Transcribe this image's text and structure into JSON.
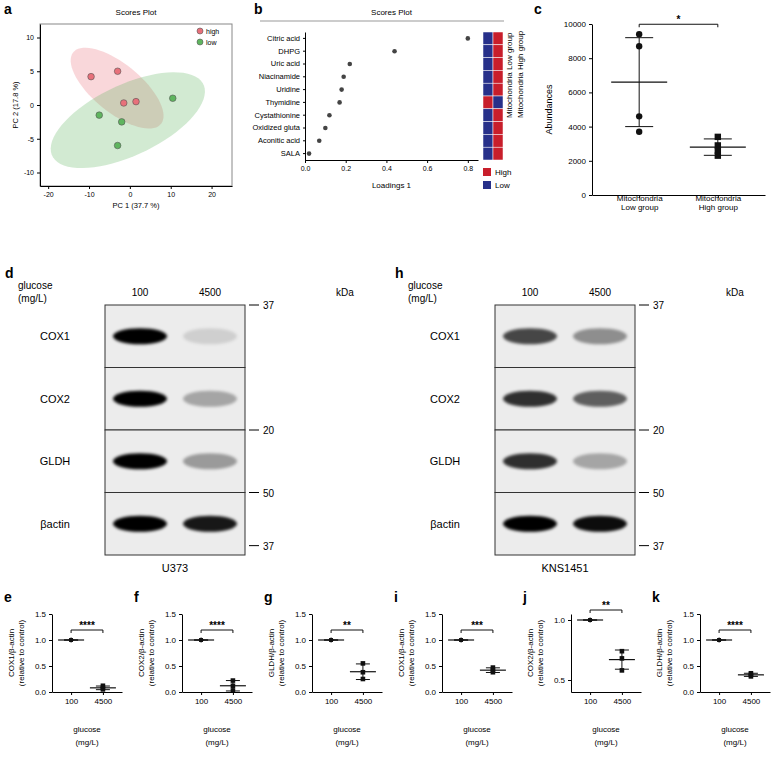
{
  "chart_data": [
    {
      "panel": "a",
      "type": "scatter",
      "title": "Scores Plot",
      "x_label": "PC 1 (37.7 %)",
      "y_label": "PC 2 (17.8 %)",
      "xlim": [
        -22,
        25
      ],
      "ylim": [
        -12,
        12
      ],
      "xticks": [
        -20,
        -10,
        0,
        10,
        20
      ],
      "yticks": [
        -10,
        -5,
        0,
        5,
        10
      ],
      "legend": "top-right",
      "series": [
        {
          "name": "high",
          "color": "#e8707a",
          "x": [
            -9.5,
            -3,
            -1.5,
            1.5
          ],
          "values": [
            4.2,
            5,
            0.3,
            0.5
          ]
        },
        {
          "name": "low",
          "color": "#5fb55f",
          "x": [
            10.5,
            -7.5,
            -2,
            -3
          ],
          "values": [
            1,
            -1.5,
            -2.5,
            -6
          ]
        }
      ]
    },
    {
      "panel": "b",
      "type": "dot",
      "orientation": "horizontal",
      "title": "Scores Plot",
      "x_label": "Loadings 1",
      "categories": [
        "Citric acid",
        "DHPG",
        "Uric acid",
        "Niacinamide",
        "Uridine",
        "Thymidine",
        "Cystathionine",
        "Oxidized gluta",
        "Aconitic acid",
        "SALA"
      ],
      "values": [
        0.8,
        0.44,
        0.22,
        0.19,
        0.18,
        0.17,
        0.12,
        0.1,
        0.07,
        0.02
      ],
      "xlim": [
        0,
        0.85
      ],
      "xticks": [
        {
          "value": 0,
          "label": "0.0"
        },
        0.2,
        0.4,
        0.6,
        0.8
      ],
      "cell_columns": [
        "Mitochondria Low group",
        "Mitochondria High group"
      ],
      "cells": [
        [
          "Low",
          "High"
        ],
        [
          "Low",
          "High"
        ],
        [
          "Low",
          "High"
        ],
        [
          "Low",
          "High"
        ],
        [
          "Low",
          "High"
        ],
        [
          "High",
          "Low"
        ],
        [
          "Low",
          "High"
        ],
        [
          "Low",
          "High"
        ],
        [
          "Low",
          "High"
        ],
        [
          "Low",
          "High"
        ]
      ],
      "series": [
        {
          "name": "High",
          "color": "#c81e2b"
        },
        {
          "name": "Low",
          "color": "#27308a"
        }
      ]
    },
    {
      "panel": "c",
      "type": "dot",
      "y_label": "Abundances",
      "categories": [
        "Mitochondria Low group",
        "Mitochondria High group"
      ],
      "values": [
        [
          9400,
          8700,
          4600,
          3700
        ],
        [
          3400,
          2900,
          2600,
          2300
        ]
      ],
      "mean": [
        6600,
        2800
      ],
      "sd": [
        2600,
        480
      ],
      "marker": [
        "circle",
        "square"
      ],
      "ylim": [
        0,
        10000
      ],
      "yticks": [
        0,
        2000,
        4000,
        6000,
        8000,
        10000
      ],
      "annotation": "*"
    },
    {
      "panel": "d",
      "type": "blot",
      "title": "U373",
      "x_label": [
        "glucose",
        "(mg/L)"
      ],
      "lanes": [
        "100",
        "4500"
      ],
      "unit": "kDa",
      "rows": [
        "COX1",
        "COX2",
        "GLDH",
        "βactin"
      ],
      "kda": [
        37,
        20,
        50,
        37
      ],
      "intensities": [
        [
          1,
          0.12
        ],
        [
          1,
          0.3
        ],
        [
          1,
          0.35
        ],
        [
          1,
          0.9
        ]
      ]
    },
    {
      "panel": "e",
      "type": "dot",
      "y_label": [
        "COX1/β-actin",
        "(relative to control)"
      ],
      "x_label": [
        "glucose",
        "(mg/L)"
      ],
      "categories": [
        "100",
        "4500"
      ],
      "values": [
        [
          1,
          1,
          1
        ],
        [
          0.05,
          0.08,
          0.12
        ]
      ],
      "mean": [
        1,
        0.08
      ],
      "sd": [
        0,
        0.035
      ],
      "marker": [
        "circle",
        "square"
      ],
      "ylim": [
        0,
        1.5
      ],
      "yticks": [
        {
          "value": 0,
          "label": "0.0"
        },
        0.5,
        {
          "value": 1,
          "label": "1.0"
        },
        1.5
      ],
      "annotation": "****"
    },
    {
      "panel": "f",
      "type": "dot",
      "y_label": [
        "COX2/β-actin",
        "(relative to control)"
      ],
      "x_label": [
        "glucose",
        "(mg/L)"
      ],
      "categories": [
        "100",
        "4500"
      ],
      "values": [
        [
          1,
          1,
          1
        ],
        [
          0.03,
          0.12,
          0.22
        ]
      ],
      "mean": [
        1,
        0.12
      ],
      "sd": [
        0,
        0.1
      ],
      "marker": [
        "circle",
        "square"
      ],
      "ylim": [
        0,
        1.5
      ],
      "yticks": [
        {
          "value": 0,
          "label": "0.0"
        },
        0.5,
        {
          "value": 1,
          "label": "1.0"
        },
        1.5
      ],
      "annotation": "****"
    },
    {
      "panel": "g",
      "type": "dot",
      "y_label": [
        "GLDH/β-actin",
        "(relative to control)"
      ],
      "x_label": [
        "glucose",
        "(mg/L)"
      ],
      "categories": [
        "100",
        "4500"
      ],
      "values": [
        [
          1,
          1,
          1
        ],
        [
          0.25,
          0.38,
          0.55
        ]
      ],
      "mean": [
        1,
        0.39
      ],
      "sd": [
        0,
        0.15
      ],
      "marker": [
        "circle",
        "square"
      ],
      "ylim": [
        0,
        1.5
      ],
      "yticks": [
        {
          "value": 0,
          "label": "0.0"
        },
        0.5,
        {
          "value": 1,
          "label": "1.0"
        },
        1.5
      ],
      "annotation": "**"
    },
    {
      "panel": "h",
      "type": "blot",
      "title": "KNS1451",
      "x_label": [
        "glucose",
        "(mg/L)"
      ],
      "lanes": [
        "100",
        "4500"
      ],
      "unit": "kDa",
      "rows": [
        "COX1",
        "COX2",
        "GLDH",
        "βactin"
      ],
      "kda": [
        37,
        20,
        50,
        37
      ],
      "intensities": [
        [
          0.7,
          0.4
        ],
        [
          0.8,
          0.6
        ],
        [
          0.8,
          0.3
        ],
        [
          1,
          0.95
        ]
      ]
    },
    {
      "panel": "i",
      "type": "dot",
      "y_label": [
        "COX1/β-actin",
        "(relative to control)"
      ],
      "x_label": [
        "glucose",
        "(mg/L)"
      ],
      "categories": [
        "100",
        "4500"
      ],
      "values": [
        [
          1,
          1,
          1
        ],
        [
          0.38,
          0.42,
          0.47
        ]
      ],
      "mean": [
        1,
        0.42
      ],
      "sd": [
        0,
        0.045
      ],
      "marker": [
        "circle",
        "square"
      ],
      "ylim": [
        0,
        1.5
      ],
      "yticks": [
        {
          "value": 0,
          "label": "0.0"
        },
        0.5,
        {
          "value": 1,
          "label": "1.0"
        },
        1.5
      ],
      "annotation": "***"
    },
    {
      "panel": "j",
      "type": "dot",
      "y_label": [
        "COX2/β-actin",
        "(relative to control)"
      ],
      "x_label": [
        "glucose",
        "(mg/L)"
      ],
      "categories": [
        "100",
        "4500"
      ],
      "values": [
        [
          1,
          1,
          1
        ],
        [
          0.58,
          0.68,
          0.74
        ]
      ],
      "mean": [
        1,
        0.67
      ],
      "sd": [
        0,
        0.08
      ],
      "marker": [
        "circle",
        "square"
      ],
      "ylim": [
        0.4,
        1.05
      ],
      "yticks": [
        0.5,
        {
          "value": 1,
          "label": "1.0"
        }
      ],
      "annotation": "**"
    },
    {
      "panel": "k",
      "type": "dot",
      "y_label": [
        "GLDH/β-actin",
        "(relative to control)"
      ],
      "x_label": [
        "glucose",
        "(mg/L)"
      ],
      "categories": [
        "100",
        "4500"
      ],
      "values": [
        [
          1,
          1,
          1
        ],
        [
          0.3,
          0.33,
          0.36
        ]
      ],
      "mean": [
        1,
        0.33
      ],
      "sd": [
        0,
        0.03
      ],
      "marker": [
        "circle",
        "square"
      ],
      "ylim": [
        0,
        1.5
      ],
      "yticks": [
        {
          "value": 0,
          "label": "0.0"
        },
        0.5,
        {
          "value": 1,
          "label": "1.0"
        },
        1.5
      ],
      "annotation": "****"
    }
  ]
}
